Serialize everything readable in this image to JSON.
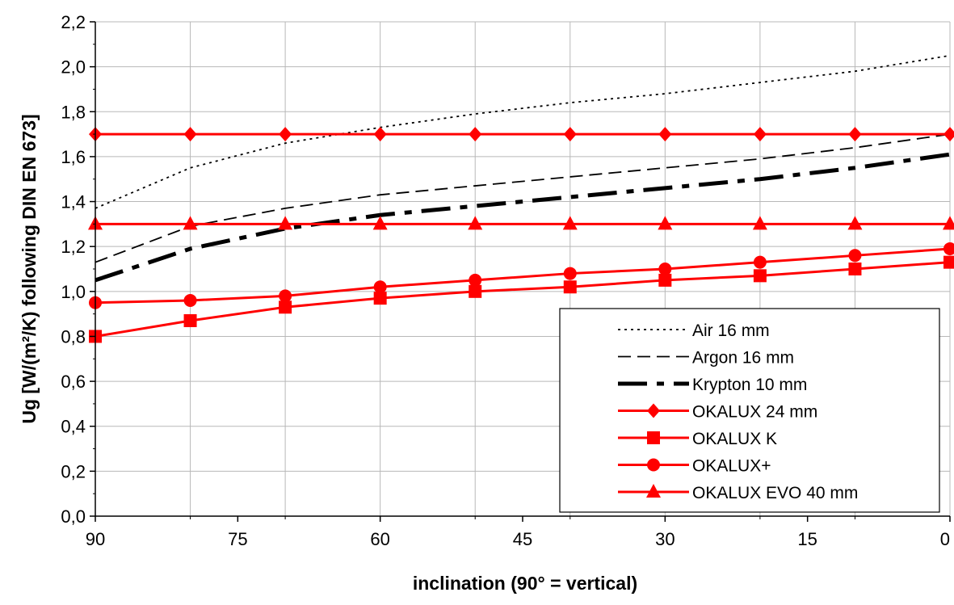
{
  "chart_data": {
    "type": "line",
    "title": "",
    "xlabel": "inclination (90° = vertical)",
    "ylabel": "Ug [W/(m²/K) following DIN EN 673]",
    "x_reversed": true,
    "xlim": [
      90,
      0
    ],
    "ylim": [
      0,
      2.2
    ],
    "x_ticks": [
      90,
      75,
      60,
      45,
      30,
      15,
      0
    ],
    "y_ticks": [
      0.0,
      0.2,
      0.4,
      0.6,
      0.8,
      1.0,
      1.2,
      1.4,
      1.6,
      1.8,
      2.0,
      2.2
    ],
    "x_tick_labels": [
      "90",
      "75",
      "60",
      "45",
      "30",
      "15",
      "0"
    ],
    "y_tick_labels": [
      "0,0",
      "0,2",
      "0,4",
      "0,6",
      "0,8",
      "1,0",
      "1,2",
      "1,4",
      "1,6",
      "1,8",
      "2,0",
      "2,2"
    ],
    "grid": true,
    "legend_position": "bottom-right",
    "x": [
      90,
      80,
      70,
      60,
      50,
      40,
      30,
      20,
      10,
      0
    ],
    "series": [
      {
        "name": "Air 16 mm",
        "color": "#000000",
        "style": "dotted",
        "marker": "none",
        "values": [
          1.37,
          1.55,
          1.66,
          1.73,
          1.79,
          1.84,
          1.88,
          1.93,
          1.98,
          2.05
        ]
      },
      {
        "name": "Argon 16 mm",
        "color": "#000000",
        "style": "dashed",
        "marker": "none",
        "values": [
          1.13,
          1.29,
          1.37,
          1.43,
          1.47,
          1.51,
          1.55,
          1.59,
          1.64,
          1.7
        ]
      },
      {
        "name": "Krypton 10 mm",
        "color": "#000000",
        "style": "dashdot-thick",
        "marker": "none",
        "values": [
          1.05,
          1.19,
          1.28,
          1.34,
          1.38,
          1.42,
          1.46,
          1.5,
          1.55,
          1.61
        ]
      },
      {
        "name": "OKALUX 24 mm",
        "color": "#ff0000",
        "style": "solid",
        "marker": "diamond",
        "values": [
          1.7,
          1.7,
          1.7,
          1.7,
          1.7,
          1.7,
          1.7,
          1.7,
          1.7,
          1.7
        ]
      },
      {
        "name": "OKALUX K",
        "color": "#ff0000",
        "style": "solid",
        "marker": "square",
        "values": [
          0.8,
          0.87,
          0.93,
          0.97,
          1.0,
          1.02,
          1.05,
          1.07,
          1.1,
          1.13
        ]
      },
      {
        "name": "OKALUX+",
        "color": "#ff0000",
        "style": "solid",
        "marker": "circle",
        "values": [
          0.95,
          0.96,
          0.98,
          1.02,
          1.05,
          1.08,
          1.1,
          1.13,
          1.16,
          1.19
        ]
      },
      {
        "name": "OKALUX EVO 40 mm",
        "color": "#ff0000",
        "style": "solid",
        "marker": "triangle",
        "values": [
          1.3,
          1.3,
          1.3,
          1.3,
          1.3,
          1.3,
          1.3,
          1.3,
          1.3,
          1.3
        ]
      }
    ]
  }
}
